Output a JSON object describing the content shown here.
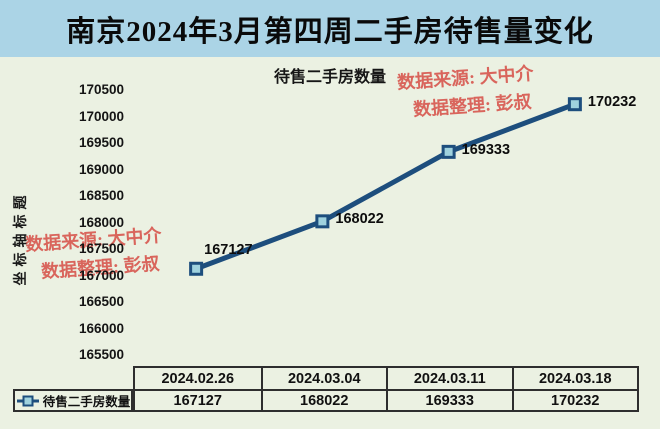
{
  "header": {
    "title": "南京2024年3月第四周二手房待售量变化"
  },
  "watermark": {
    "source": "数据来源: 大中介",
    "editor": "数据整理: 彭叔"
  },
  "chart_data": {
    "type": "line",
    "title": "待售二手房数量",
    "ylabel": "坐标轴标题",
    "xlabel": "",
    "categories": [
      "2024.02.26",
      "2024.03.04",
      "2024.03.11",
      "2024.03.18"
    ],
    "series": [
      {
        "name": "待售二手房数量",
        "values": [
          167127,
          168022,
          169333,
          170232
        ]
      }
    ],
    "data_labels": [
      "167127",
      "168022",
      "169333",
      "170232"
    ],
    "ylim": [
      165500,
      170500
    ],
    "y_tick_step": 500,
    "y_ticks": [
      "170500",
      "170000",
      "169500",
      "169000",
      "168500",
      "168000",
      "167500",
      "167000",
      "166500",
      "166000",
      "165500"
    ],
    "grid": false,
    "legend_position": "bottom-left-table",
    "marker": "square"
  },
  "colors": {
    "titlebar-bg": "#abd4e6",
    "chart-bg": "#ebf1e2",
    "line": "#1d4e7d",
    "marker-fill": "#9fd2de",
    "watermark": "#d9655c",
    "table-border": "#2e2e2e",
    "text": "#111111"
  }
}
